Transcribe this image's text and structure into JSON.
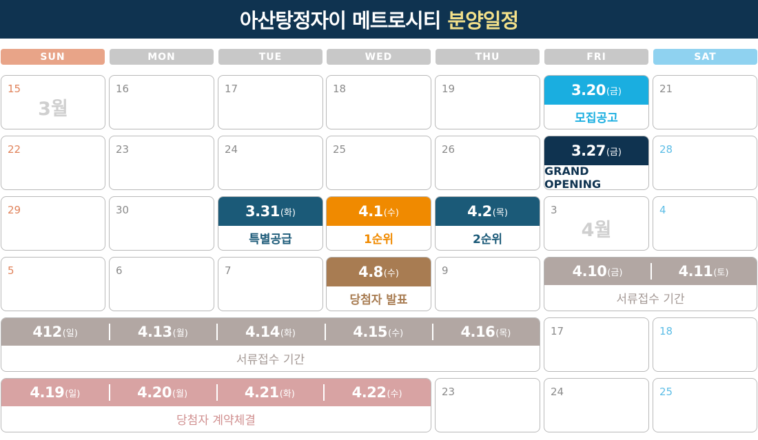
{
  "header": {
    "title_main": "아산탕정자이 메트로시티",
    "title_accent": "분양일정"
  },
  "weekdays": [
    "SUN",
    "MON",
    "TUE",
    "WED",
    "THU",
    "FRI",
    "SAT"
  ],
  "month_marks": {
    "march": "3월",
    "april": "4월"
  },
  "days": {
    "r1": [
      "15",
      "16",
      "17",
      "18",
      "19",
      "21"
    ],
    "r2": [
      "22",
      "23",
      "24",
      "25",
      "26",
      "28"
    ],
    "r3": [
      "29",
      "30",
      "3",
      "4"
    ],
    "r4": [
      "5",
      "6",
      "7",
      "9"
    ],
    "r5": [
      "17",
      "18"
    ],
    "r6": [
      "23",
      "24",
      "25"
    ]
  },
  "events": {
    "recruit": {
      "date": "3.20",
      "day": "(금)",
      "label": "모집공고"
    },
    "opening": {
      "date": "3.27",
      "day": "(금)",
      "label": "GRAND OPENING"
    },
    "special": {
      "date": "3.31",
      "day": "(화)",
      "label": "특별공급"
    },
    "rank1": {
      "date": "4.1",
      "day": "(수)",
      "label": "1순위"
    },
    "rank2": {
      "date": "4.2",
      "day": "(목)",
      "label": "2순위"
    },
    "winners": {
      "date": "4.8",
      "day": "(수)",
      "label": "당첨자 발표"
    }
  },
  "doc_period_1": {
    "dates": [
      {
        "date": "4.10",
        "day": "(금)"
      },
      {
        "date": "4.11",
        "day": "(토)"
      }
    ],
    "label": "서류접수 기간"
  },
  "doc_period_2": {
    "dates": [
      {
        "date": "412",
        "day": "(일)"
      },
      {
        "date": "4.13",
        "day": "(월)"
      },
      {
        "date": "4.14",
        "day": "(화)"
      },
      {
        "date": "4.15",
        "day": "(수)"
      },
      {
        "date": "4.16",
        "day": "(목)"
      }
    ],
    "label": "서류접수 기간"
  },
  "contract": {
    "dates": [
      {
        "date": "4.19",
        "day": "(일)"
      },
      {
        "date": "4.20",
        "day": "(월)"
      },
      {
        "date": "4.21",
        "day": "(화)"
      },
      {
        "date": "4.22",
        "day": "(수)"
      }
    ],
    "label": "당첨자 계약체결"
  },
  "colors": {
    "header_bg": "#0f3350",
    "sun": "#e8a488",
    "weekday": "#c8c8c8",
    "sat": "#8fd2f0",
    "recruit": "#1aaee0",
    "opening": "#0f3350",
    "special": "#1b5a78",
    "rank1": "#f08a00",
    "rank2": "#1b5a78",
    "winners": "#a87c52",
    "doc": "#b2a7a3",
    "contract": "#d8a3a3"
  }
}
